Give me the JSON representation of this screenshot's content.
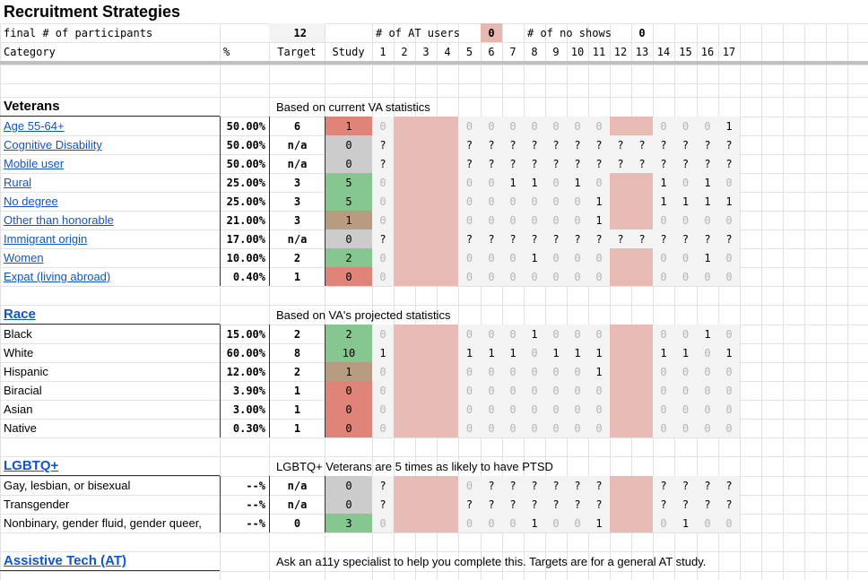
{
  "title": "Recruitment Strategies",
  "summary": {
    "label": "final # of participants",
    "participants": "12",
    "at_users_label": "# of AT users",
    "at_users": "0",
    "no_shows_label": "# of no shows",
    "no_shows": "0"
  },
  "header": {
    "category": "Category",
    "percent": "%",
    "target": "Target",
    "study": "Study",
    "sessions": [
      "1",
      "2",
      "3",
      "4",
      "5",
      "6",
      "7",
      "8",
      "9",
      "10",
      "11",
      "12",
      "13",
      "14",
      "15",
      "16",
      "17"
    ]
  },
  "sections": [
    {
      "title": "Veterans",
      "link": false,
      "note": "Based on current VA statistics",
      "rows": [
        {
          "category": "Age 55-64+",
          "link": true,
          "percent": "50.00%",
          "target": "6",
          "study": "1",
          "study_color": "#e0847a",
          "sessions": [
            "0",
            null,
            null,
            null,
            "0",
            "0",
            "0",
            "0",
            "0",
            "0",
            "0",
            null,
            null,
            "0",
            "0",
            "0",
            "1"
          ]
        },
        {
          "category": "Cognitive Disability",
          "link": true,
          "percent": "50.00%",
          "target": "n/a",
          "study": "0",
          "study_color": "#cccccc",
          "sessions": [
            "?",
            null,
            null,
            null,
            "?",
            "?",
            "?",
            "?",
            "?",
            "?",
            "?",
            "?",
            "?",
            "?",
            "?",
            "?",
            "?"
          ]
        },
        {
          "category": "Mobile user",
          "link": true,
          "percent": "50.00%",
          "target": "n/a",
          "study": "0",
          "study_color": "#cccccc",
          "sessions": [
            "?",
            null,
            null,
            null,
            "?",
            "?",
            "?",
            "?",
            "?",
            "?",
            "?",
            "?",
            "?",
            "?",
            "?",
            "?",
            "?"
          ]
        },
        {
          "category": "Rural",
          "link": true,
          "percent": "25.00%",
          "target": "3",
          "study": "5",
          "study_color": "#86c78f",
          "sessions": [
            "0",
            null,
            null,
            null,
            "0",
            "0",
            "1",
            "1",
            "0",
            "1",
            "0",
            null,
            null,
            "1",
            "0",
            "1",
            "0"
          ]
        },
        {
          "category": "No degree",
          "link": true,
          "percent": "25.00%",
          "target": "3",
          "study": "5",
          "study_color": "#86c78f",
          "sessions": [
            "0",
            null,
            null,
            null,
            "0",
            "0",
            "0",
            "0",
            "0",
            "0",
            "1",
            null,
            null,
            "1",
            "1",
            "1",
            "1"
          ]
        },
        {
          "category": "Other than honorable",
          "link": true,
          "percent": "21.00%",
          "target": "3",
          "study": "1",
          "study_color": "#b89c82",
          "sessions": [
            "0",
            null,
            null,
            null,
            "0",
            "0",
            "0",
            "0",
            "0",
            "0",
            "1",
            null,
            null,
            "0",
            "0",
            "0",
            "0"
          ]
        },
        {
          "category": "Immigrant origin",
          "link": true,
          "percent": "17.00%",
          "target": "n/a",
          "study": "0",
          "study_color": "#cccccc",
          "sessions": [
            "?",
            null,
            null,
            null,
            "?",
            "?",
            "?",
            "?",
            "?",
            "?",
            "?",
            "?",
            "?",
            "?",
            "?",
            "?",
            "?"
          ]
        },
        {
          "category": "Women",
          "link": true,
          "percent": "10.00%",
          "target": "2",
          "study": "2",
          "study_color": "#86c78f",
          "sessions": [
            "0",
            null,
            null,
            null,
            "0",
            "0",
            "0",
            "1",
            "0",
            "0",
            "0",
            null,
            null,
            "0",
            "0",
            "1",
            "0"
          ]
        },
        {
          "category": "Expat (living abroad)",
          "link": true,
          "percent": "0.40%",
          "target": "1",
          "study": "0",
          "study_color": "#e0847a",
          "sessions": [
            "0",
            null,
            null,
            null,
            "0",
            "0",
            "0",
            "0",
            "0",
            "0",
            "0",
            null,
            null,
            "0",
            "0",
            "0",
            "0"
          ]
        }
      ]
    },
    {
      "title": "Race",
      "link": true,
      "note": "Based on VA's projected statistics",
      "rows": [
        {
          "category": "Black",
          "link": false,
          "percent": "15.00%",
          "target": "2",
          "study": "2",
          "study_color": "#86c78f",
          "sessions": [
            "0",
            null,
            null,
            null,
            "0",
            "0",
            "0",
            "1",
            "0",
            "0",
            "0",
            null,
            null,
            "0",
            "0",
            "1",
            "0"
          ]
        },
        {
          "category": "White",
          "link": false,
          "percent": "60.00%",
          "target": "8",
          "study": "10",
          "study_color": "#86c78f",
          "sessions": [
            "1",
            null,
            null,
            null,
            "1",
            "1",
            "1",
            "0",
            "1",
            "1",
            "1",
            null,
            null,
            "1",
            "1",
            "0",
            "1"
          ]
        },
        {
          "category": "Hispanic",
          "link": false,
          "percent": "12.00%",
          "target": "2",
          "study": "1",
          "study_color": "#b89c82",
          "sessions": [
            "0",
            null,
            null,
            null,
            "0",
            "0",
            "0",
            "0",
            "0",
            "0",
            "1",
            null,
            null,
            "0",
            "0",
            "0",
            "0"
          ]
        },
        {
          "category": "Biracial",
          "link": false,
          "percent": "3.90%",
          "target": "1",
          "study": "0",
          "study_color": "#e0847a",
          "sessions": [
            "0",
            null,
            null,
            null,
            "0",
            "0",
            "0",
            "0",
            "0",
            "0",
            "0",
            null,
            null,
            "0",
            "0",
            "0",
            "0"
          ]
        },
        {
          "category": "Asian",
          "link": false,
          "percent": "3.00%",
          "target": "1",
          "study": "0",
          "study_color": "#e0847a",
          "sessions": [
            "0",
            null,
            null,
            null,
            "0",
            "0",
            "0",
            "0",
            "0",
            "0",
            "0",
            null,
            null,
            "0",
            "0",
            "0",
            "0"
          ]
        },
        {
          "category": "Native",
          "link": false,
          "percent": "0.30%",
          "target": "1",
          "study": "0",
          "study_color": "#e0847a",
          "sessions": [
            "0",
            null,
            null,
            null,
            "0",
            "0",
            "0",
            "0",
            "0",
            "0",
            "0",
            null,
            null,
            "0",
            "0",
            "0",
            "0"
          ]
        }
      ]
    },
    {
      "title": "LGBTQ+",
      "link": true,
      "note": "LGBTQ+ Veterans are 5 times as likely to have PTSD",
      "rows": [
        {
          "category": "Gay, lesbian, or bisexual",
          "link": false,
          "percent": "--%",
          "target": "n/a",
          "study": "0",
          "study_color": "#cccccc",
          "sessions": [
            "?",
            null,
            null,
            null,
            "0",
            "?",
            "?",
            "?",
            "?",
            "?",
            "?",
            null,
            null,
            "?",
            "?",
            "?",
            "?"
          ]
        },
        {
          "category": "Transgender",
          "link": false,
          "percent": "--%",
          "target": "n/a",
          "study": "0",
          "study_color": "#cccccc",
          "sessions": [
            "?",
            null,
            null,
            null,
            "?",
            "?",
            "?",
            "?",
            "?",
            "?",
            "?",
            null,
            null,
            "?",
            "?",
            "?",
            "?"
          ]
        },
        {
          "category": "Nonbinary, gender fluid, gender queer,",
          "link": false,
          "percent": "--%",
          "target": "0",
          "study": "3",
          "study_color": "#86c78f",
          "sessions": [
            "0",
            null,
            null,
            null,
            "0",
            "0",
            "0",
            "1",
            "0",
            "0",
            "1",
            null,
            null,
            "0",
            "1",
            "0",
            "0"
          ]
        }
      ]
    },
    {
      "title": "Assistive Tech (AT)",
      "link": true,
      "note": "Ask an a11y specialist to help you complete this. Targets are for a general AT study.",
      "rows": []
    }
  ]
}
